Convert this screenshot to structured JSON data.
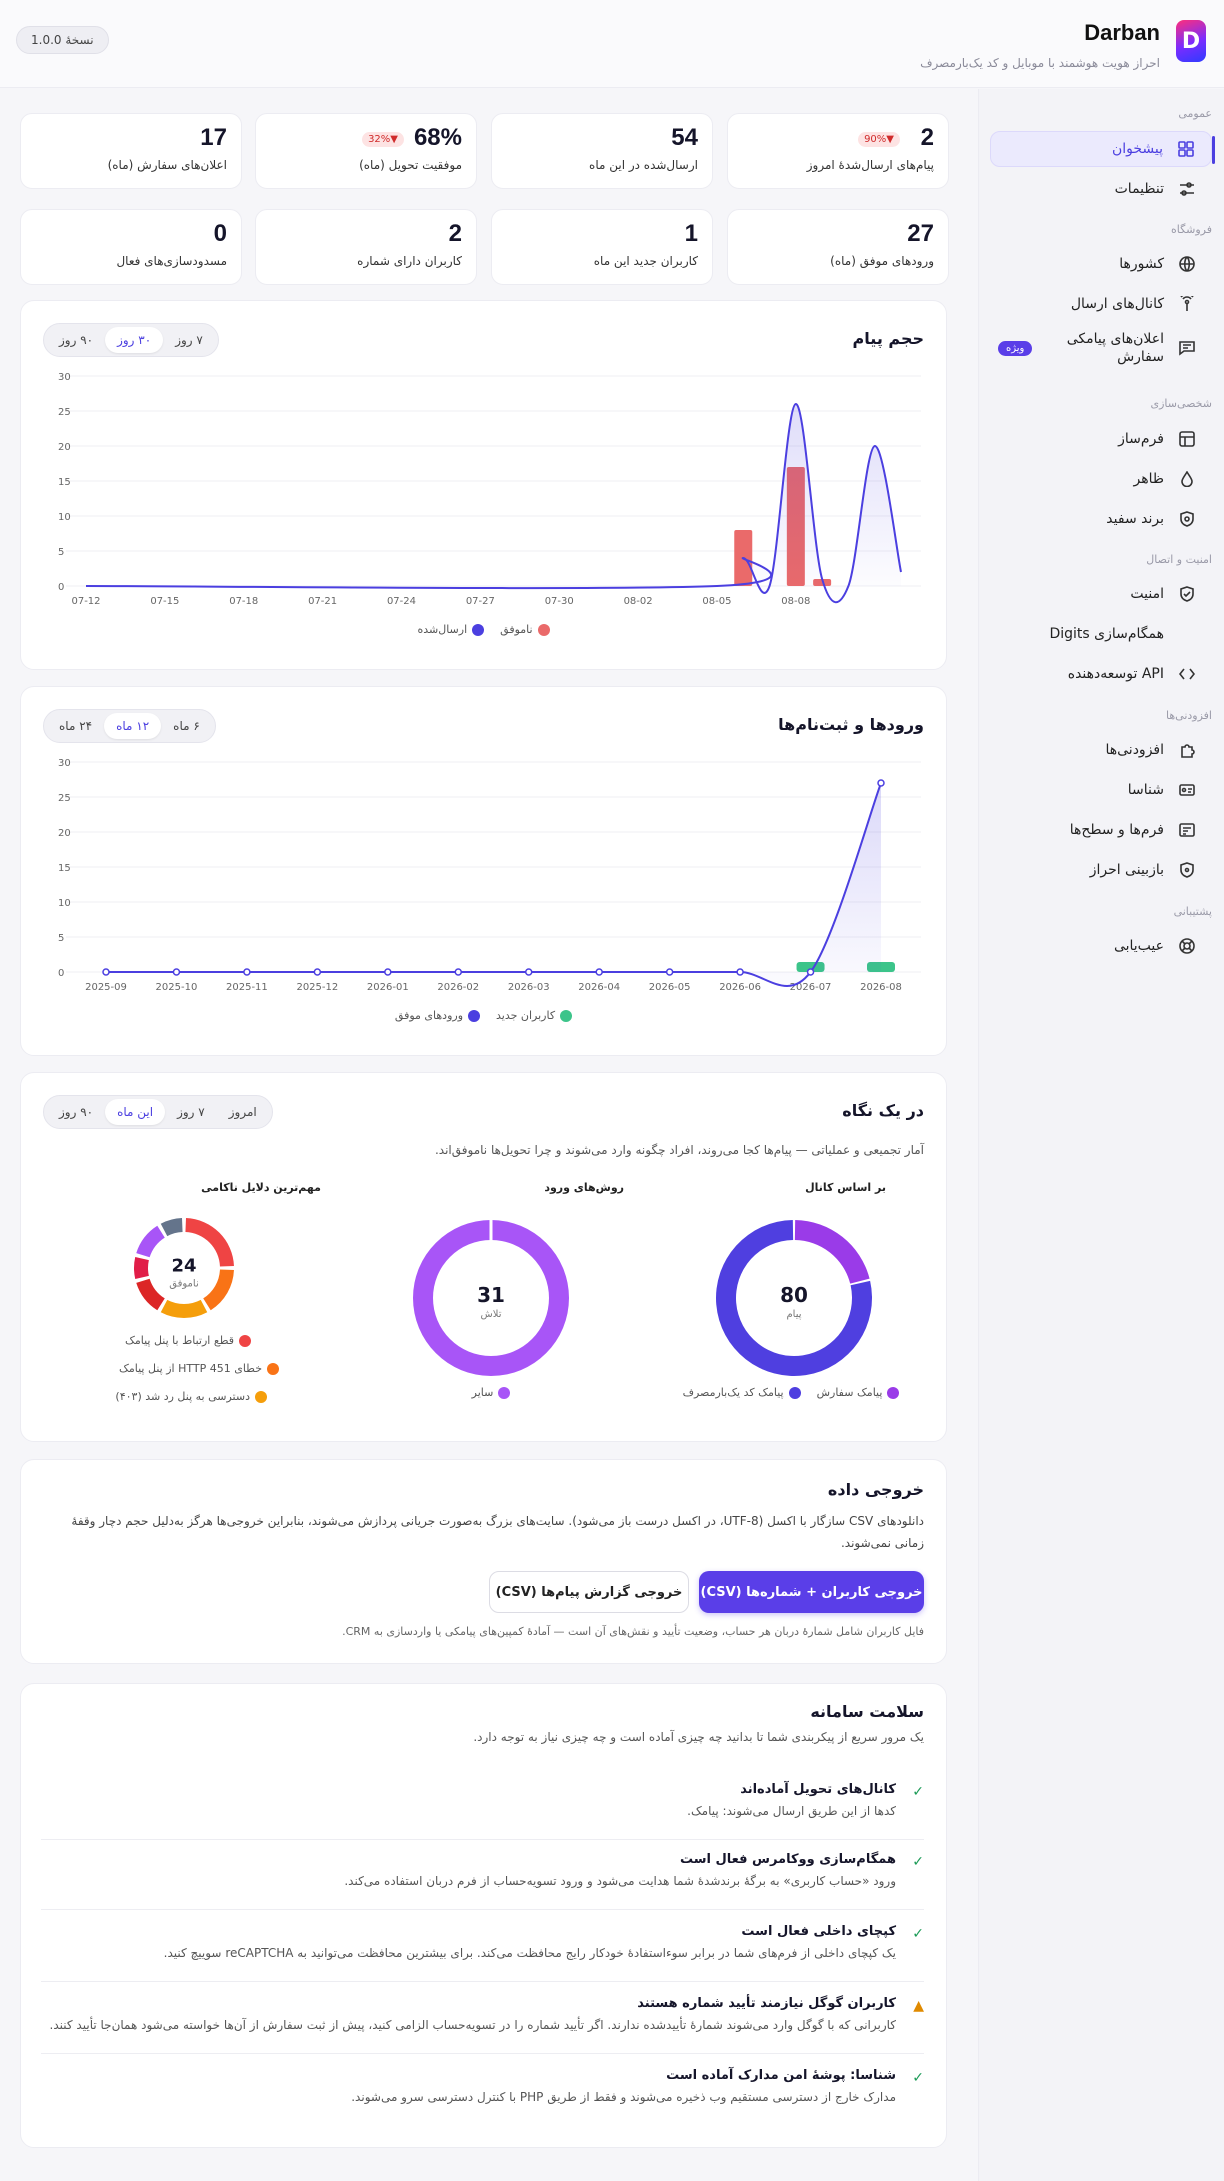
{
  "app": {
    "title": "Darban",
    "subtitle": "احراز هویت هوشمند با موبایل و کد یک‌بارمصرف",
    "version": "نسخهٔ 1.0.0",
    "logo_letter": "D"
  },
  "sidebar": {
    "sections": [
      {
        "title": "عمومی"
      },
      {
        "title": "فروشگاه"
      },
      {
        "title": "شخصی‌سازی"
      },
      {
        "title": "امنیت و اتصال"
      },
      {
        "title": "افزودنی‌ها"
      },
      {
        "title": "پشتیبانی"
      }
    ],
    "items": [
      {
        "label": "پیشخوان",
        "icon": "dashboard-icon",
        "active": true
      },
      {
        "label": "تنظیمات",
        "icon": "sliders-icon"
      },
      {
        "label": "کشورها",
        "icon": "globe-icon"
      },
      {
        "label": "کانال‌های ارسال",
        "icon": "broadcast-icon"
      },
      {
        "label": "اعلان‌های پیامکی سفارش",
        "icon": "message-icon",
        "badge": "ویژه"
      },
      {
        "label": "فرم‌ساز",
        "icon": "layout-icon"
      },
      {
        "label": "ظاهر",
        "icon": "drop-icon"
      },
      {
        "label": "برند سفید",
        "icon": "shield-star-icon"
      },
      {
        "label": "امنیت",
        "icon": "shield-check-icon"
      },
      {
        "label": "همگام‌سازی Digits",
        "icon": "sync-icon"
      },
      {
        "label": "API توسعه‌دهنده",
        "icon": "code-icon"
      },
      {
        "label": "افزودنی‌ها",
        "icon": "puzzle-icon"
      },
      {
        "label": "شناسا",
        "icon": "id-card-icon"
      },
      {
        "label": "فرم‌ها و سطح‌ها",
        "icon": "form-icon"
      },
      {
        "label": "بازبینی احراز",
        "icon": "shield-eye-icon"
      },
      {
        "label": "عیب‌یابی",
        "icon": "lifebuoy-icon"
      }
    ]
  },
  "stats": [
    {
      "value": "2",
      "label": "پیام‌های ارسال‌شدهٔ امروز",
      "delta": "▼90%"
    },
    {
      "value": "54",
      "label": "ارسال‌شده در این ماه"
    },
    {
      "value": "68%",
      "label": "موفقیت تحویل (ماه)",
      "delta": "▼32%"
    },
    {
      "value": "17",
      "label": "اعلان‌های سفارش (ماه)"
    },
    {
      "value": "27",
      "label": "ورودهای موفق (ماه)"
    },
    {
      "value": "1",
      "label": "کاربران جدید این ماه"
    },
    {
      "value": "2",
      "label": "کاربران دارای شماره"
    },
    {
      "value": "0",
      "label": "مسدودسازی‌های فعال"
    }
  ],
  "volume_card": {
    "title": "حجم پیام",
    "ranges": [
      "۷ روز",
      "۳۰ روز",
      "۹۰ روز"
    ],
    "active_range": 1,
    "legend": [
      "ناموفق",
      "ارسال‌شده"
    ],
    "colors": {
      "failed": "#ea6a6a",
      "sent": "#4b3fe0"
    }
  },
  "logins_card": {
    "title": "ورودها و ثبت‌نام‌ها",
    "ranges": [
      "۶ ماه",
      "۱۲ ماه",
      "۲۴ ماه"
    ],
    "active_range": 1,
    "legend": [
      "کاربران جدید",
      "ورودهای موفق"
    ],
    "colors": {
      "new_users": "#3cc48a",
      "logins": "#4b3fe0"
    }
  },
  "chart_data": [
    {
      "type": "line",
      "title": "حجم پیام",
      "x_ticks": [
        "07-12",
        "07-15",
        "07-18",
        "07-21",
        "07-24",
        "07-27",
        "07-30",
        "08-02",
        "08-05",
        "08-08"
      ],
      "ylim": [
        0,
        30
      ],
      "y_ticks": [
        0,
        5,
        10,
        15,
        20,
        25,
        30
      ],
      "grid": true,
      "legend_position": "bottom",
      "series": [
        {
          "name": "ارسال‌شده",
          "type": "line",
          "points": [
            [
              0,
              0
            ],
            [
              24,
              0
            ],
            [
              25,
              4
            ],
            [
              26,
              0
            ],
            [
              27,
              26
            ],
            [
              28,
              1
            ],
            [
              29,
              0
            ],
            [
              30,
              20
            ],
            [
              31,
              2
            ]
          ]
        },
        {
          "name": "ناموفق",
          "type": "bar",
          "points": [
            [
              25,
              8
            ],
            [
              27,
              17
            ],
            [
              28,
              1
            ]
          ]
        }
      ]
    },
    {
      "type": "line",
      "title": "ورودها و ثبت‌نام‌ها",
      "x_ticks": [
        "2025-09",
        "2025-10",
        "2025-11",
        "2025-12",
        "2026-01",
        "2026-02",
        "2026-03",
        "2026-04",
        "2026-05",
        "2026-06",
        "2026-07",
        "2026-08"
      ],
      "ylim": [
        0,
        30
      ],
      "y_ticks": [
        0,
        5,
        10,
        15,
        20,
        25,
        30
      ],
      "grid": true,
      "legend_position": "bottom",
      "series": [
        {
          "name": "ورودهای موفق",
          "type": "line",
          "values": [
            0,
            0,
            0,
            0,
            0,
            0,
            0,
            0,
            0,
            0,
            0,
            27
          ]
        },
        {
          "name": "کاربران جدید",
          "type": "bar",
          "values": [
            0,
            0,
            0,
            0,
            0,
            0,
            0,
            0,
            0,
            0,
            1,
            1
          ]
        }
      ]
    },
    {
      "type": "pie",
      "title": "بر اساس کانال",
      "center_value": "80",
      "center_label": "پیام",
      "slices": [
        {
          "name": "پیامک سفارش",
          "value": 17,
          "color": "#9a3be8"
        },
        {
          "name": "پیامک کد یک‌بارمصرف",
          "value": 63,
          "color": "#4f3fe0"
        }
      ]
    },
    {
      "type": "pie",
      "title": "روش‌های ورود",
      "center_value": "31",
      "center_label": "تلاش",
      "slices": [
        {
          "name": "سایر",
          "value": 31,
          "color": "#a855f7"
        }
      ]
    },
    {
      "type": "pie",
      "title": "مهم‌ترین دلایل ناکامی",
      "center_value": "24",
      "center_label": "ناموفق",
      "slices": [
        {
          "name": "قطع ارتباط با پنل پیامک",
          "value": 6,
          "color": "#ef4444"
        },
        {
          "name": "خطای HTTP 451 از پنل پیامک",
          "value": 4,
          "color": "#f97316"
        },
        {
          "name": "دسترسی به پنل رد شد (۴۰۳)",
          "value": 4,
          "color": "#f59e0b"
        },
        {
          "name": "",
          "value": 3,
          "color": "#dc2626"
        },
        {
          "name": "",
          "value": 2,
          "color": "#e11d48"
        },
        {
          "name": "",
          "value": 3,
          "color": "#a855f7"
        },
        {
          "name": "",
          "value": 2,
          "color": "#64748b"
        }
      ]
    }
  ],
  "glance_card": {
    "title": "در یک نگاه",
    "ranges": [
      "امروز",
      "۷ روز",
      "این ماه",
      "۹۰ روز"
    ],
    "active_range": 2,
    "description": "آمار تجمیعی و عملیاتی — پیام‌ها کجا می‌روند، افراد چگونه وارد می‌شوند و چرا تحویل‌ها ناموفق‌اند."
  },
  "export_card": {
    "title": "خروجی داده",
    "description": "دانلودهای CSV سازگار با اکسل (UTF-8، در اکسل درست باز می‌شود). سایت‌های بزرگ به‌صورت جریانی پردازش می‌شوند، بنابراین خروجی‌ها هرگز به‌دلیل حجم دچار وقفهٔ زمانی نمی‌شوند.",
    "primary_button": "خروجی کاربران + شماره‌ها (CSV)",
    "secondary_button": "خروجی گزارش پیام‌ها (CSV)",
    "note": "فایل کاربران شامل شمارهٔ دربان هر حساب، وضعیت تأیید و نقش‌های آن است — آمادهٔ کمپین‌های پیامکی یا واردسازی به CRM."
  },
  "health_card": {
    "title": "سلامت سامانه",
    "subtitle": "یک مرور سریع از پیکربندی شما تا بدانید چه چیزی آماده است و چه چیزی نیاز به توجه دارد.",
    "items": [
      {
        "status": "ok",
        "title": "کانال‌های تحویل آماده‌اند",
        "desc": "کدها از این طریق ارسال می‌شوند: پیامک."
      },
      {
        "status": "ok",
        "title": "همگام‌سازی ووکامرس فعال است",
        "desc": "ورود «حساب کاربری» به برگهٔ برندشدهٔ شما هدایت می‌شود و ورود تسویه‌حساب از فرم دربان استفاده می‌کند."
      },
      {
        "status": "ok",
        "title": "کپچای داخلی فعال است",
        "desc": "یک کپچای داخلی از فرم‌های شما در برابر سوءاستفادهٔ خودکار رایج محافظت می‌کند. برای بیشترین محافظت می‌توانید به reCAPTCHA سوییچ کنید."
      },
      {
        "status": "warn",
        "title": "کاربران گوگل نیازمند تأیید شماره هستند",
        "desc": "کاربرانی که با گوگل وارد می‌شوند شمارهٔ تأییدشده ندارند. اگر تأیید شماره را در تسویه‌حساب الزامی کنید، پیش از ثبت سفارش از آن‌ها خواسته می‌شود همان‌جا تأیید کنند."
      },
      {
        "status": "ok",
        "title": "شناسا: پوشهٔ امن مدارک آماده است",
        "desc": "مدارک خارج از دسترسی مستقیم وب ذخیره می‌شوند و فقط از طریق PHP با کنترل دسترسی سرو می‌شوند."
      }
    ]
  }
}
